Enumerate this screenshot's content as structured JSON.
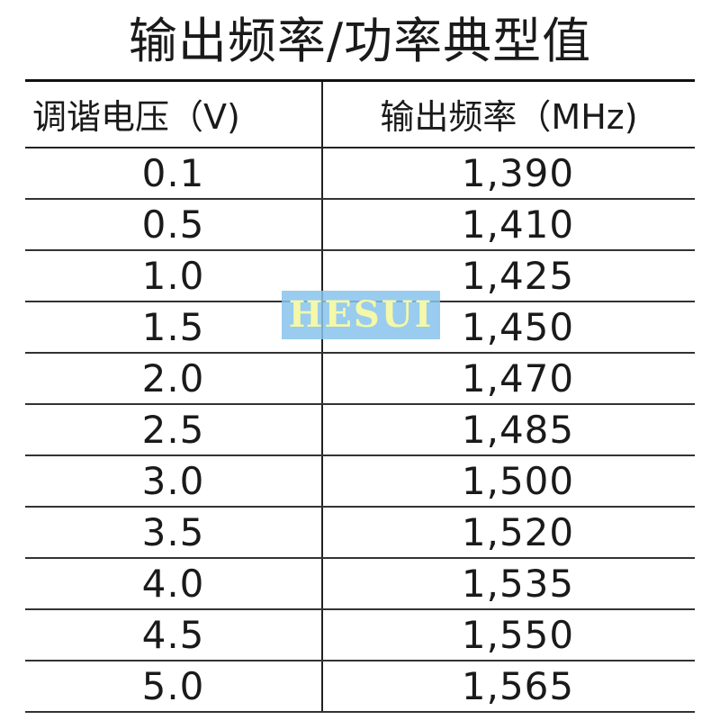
{
  "title": "输出频率/功率典型值",
  "table": {
    "headers": [
      "调谐电压（V)",
      "输出频率（MHz)"
    ],
    "rows": [
      [
        "0.1",
        "1,390"
      ],
      [
        "0.5",
        "1,410"
      ],
      [
        "1.0",
        "1,425"
      ],
      [
        "1.5",
        "1,450"
      ],
      [
        "2.0",
        "1,470"
      ],
      [
        "2.5",
        "1,485"
      ],
      [
        "3.0",
        "1,500"
      ],
      [
        "3.5",
        "1,520"
      ],
      [
        "4.0",
        "1,535"
      ],
      [
        "4.5",
        "1,550"
      ],
      [
        "5.0",
        "1,565"
      ]
    ]
  },
  "watermark": {
    "text": "HESUI",
    "background_color": "#87c3eb",
    "text_color": "#f4f8a8"
  }
}
